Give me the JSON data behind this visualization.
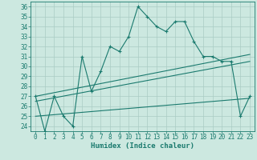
{
  "xlabel": "Humidex (Indice chaleur)",
  "background_color": "#cce8e0",
  "grid_color": "#aaccc4",
  "line_color": "#1a7a6e",
  "x_values": [
    0,
    1,
    2,
    3,
    4,
    5,
    6,
    7,
    8,
    9,
    10,
    11,
    12,
    13,
    14,
    15,
    16,
    17,
    18,
    19,
    20,
    21,
    22,
    23
  ],
  "main_line": [
    27,
    23.5,
    27,
    25,
    24,
    31,
    27.5,
    29.5,
    32,
    31.5,
    33,
    36,
    35,
    34,
    33.5,
    34.5,
    34.5,
    32.5,
    31,
    31,
    30.5,
    30.5,
    25,
    27
  ],
  "trend_line1": [
    [
      0,
      27.0
    ],
    [
      23,
      31.2
    ]
  ],
  "trend_line2": [
    [
      0,
      26.5
    ],
    [
      23,
      30.5
    ]
  ],
  "trend_line3": [
    [
      0,
      25.0
    ],
    [
      23,
      26.8
    ]
  ],
  "ylim": [
    23.5,
    36.5
  ],
  "yticks": [
    24,
    25,
    26,
    27,
    28,
    29,
    30,
    31,
    32,
    33,
    34,
    35,
    36
  ],
  "xlim": [
    -0.5,
    23.5
  ],
  "xticks": [
    0,
    1,
    2,
    3,
    4,
    5,
    6,
    7,
    8,
    9,
    10,
    11,
    12,
    13,
    14,
    15,
    16,
    17,
    18,
    19,
    20,
    21,
    22,
    23
  ]
}
